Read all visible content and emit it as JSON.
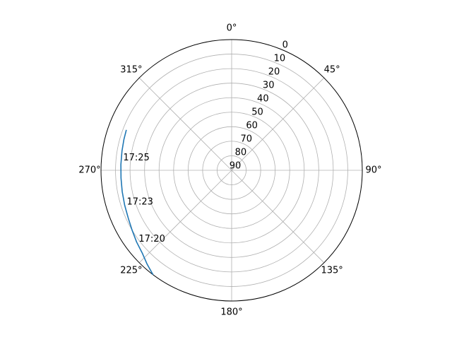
{
  "chart_data": {
    "type": "polar-line",
    "title": "",
    "theta_zero_location": "N",
    "theta_direction": "clockwise",
    "theta_ticks": [
      {
        "deg": 0,
        "label": "0°"
      },
      {
        "deg": 45,
        "label": "45°"
      },
      {
        "deg": 90,
        "label": "90°"
      },
      {
        "deg": 135,
        "label": "135°"
      },
      {
        "deg": 180,
        "label": "180°"
      },
      {
        "deg": 225,
        "label": "225°"
      },
      {
        "deg": 270,
        "label": "270°"
      },
      {
        "deg": 315,
        "label": "315°"
      }
    ],
    "r_axis": {
      "quantity": "elevation",
      "range": [
        90,
        0
      ],
      "ticks": [
        0,
        10,
        20,
        30,
        40,
        50,
        60,
        70,
        80,
        90
      ],
      "tick_labels": [
        "0",
        "10",
        "20",
        "30",
        "40",
        "50",
        "60",
        "70",
        "80",
        "90"
      ],
      "label_angle_deg": 22.5
    },
    "grid": true,
    "series": [
      {
        "color": "#1f77b4",
        "points": [
          {
            "az": 217,
            "el": 0
          },
          {
            "az": 222,
            "el": 3
          },
          {
            "az": 227,
            "el": 6
          },
          {
            "az": 233,
            "el": 8
          },
          {
            "az": 239,
            "el": 10
          },
          {
            "az": 245,
            "el": 11.5
          },
          {
            "az": 252,
            "el": 12.5
          },
          {
            "az": 259,
            "el": 13.2
          },
          {
            "az": 266,
            "el": 13.6
          },
          {
            "az": 273,
            "el": 13.6
          },
          {
            "az": 280,
            "el": 13.3
          },
          {
            "az": 286,
            "el": 12.8
          },
          {
            "az": 291,
            "el": 12.3
          }
        ]
      }
    ],
    "annotations": [
      {
        "text": "17:20",
        "az": 233,
        "el": 8
      },
      {
        "text": "17:23",
        "az": 252,
        "el": 12.5
      },
      {
        "text": "17:25",
        "az": 275,
        "el": 13.5
      }
    ]
  }
}
